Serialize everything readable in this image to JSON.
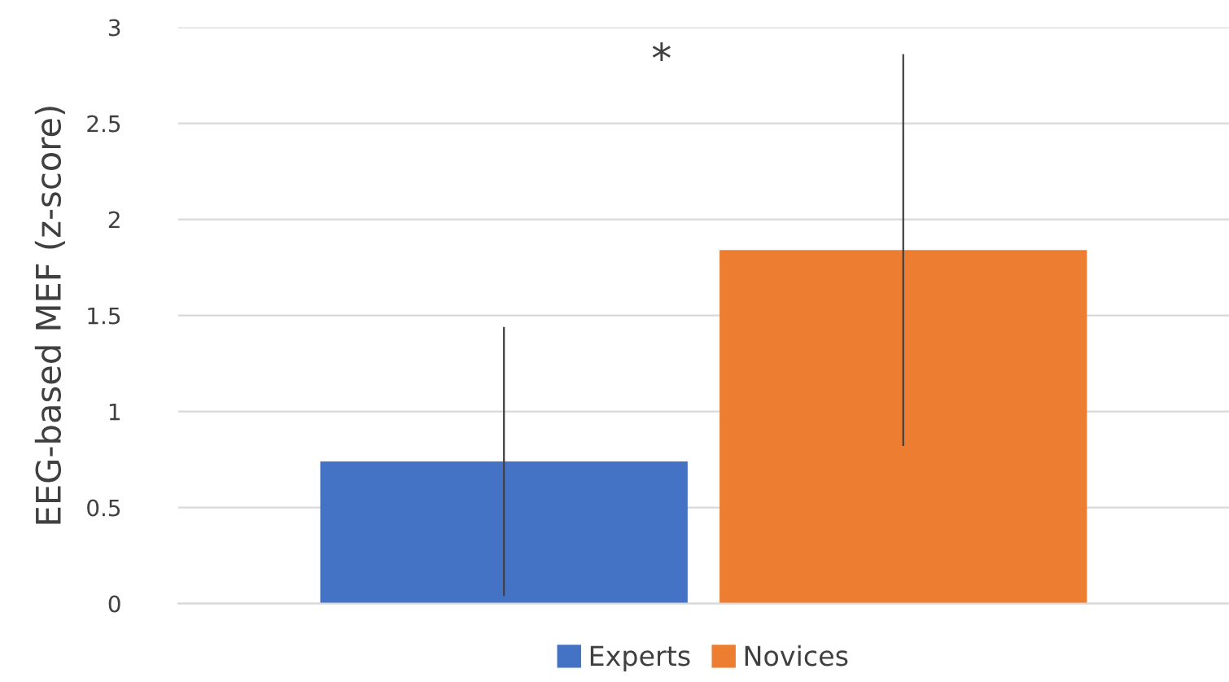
{
  "chart_data": {
    "type": "bar",
    "ylabel": "EEG-based MEF (z-score)",
    "categories": [
      null
    ],
    "series": [
      {
        "name": "Experts",
        "color": "#4472c4",
        "values": [
          0.74
        ],
        "errors": [
          0.7
        ]
      },
      {
        "name": "Novices",
        "color": "#ed7d31",
        "values": [
          1.84
        ],
        "errors": [
          1.02
        ]
      }
    ],
    "ylim": [
      0,
      3
    ],
    "yticks": [
      0,
      0.5,
      1,
      1.5,
      2,
      2.5,
      3
    ],
    "grid": "y",
    "legend": "bottom",
    "annotations": [
      "*"
    ]
  }
}
